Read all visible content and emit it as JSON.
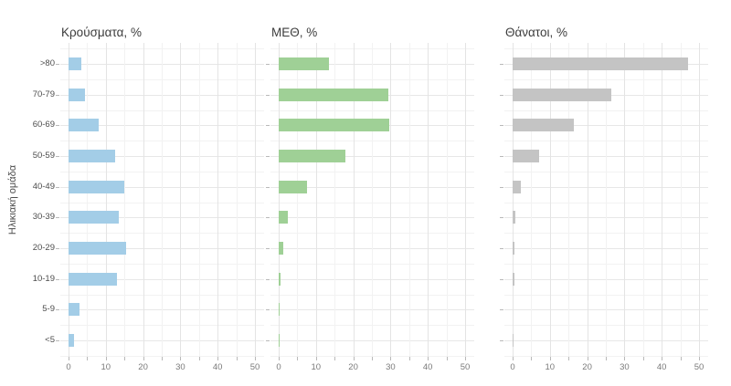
{
  "chart_data": {
    "type": "bar",
    "orientation": "horizontal",
    "title": "",
    "ylabel": "Ηλικιακή ομάδα",
    "xlabel": "",
    "categories": [
      ">80",
      "70-79",
      "60-69",
      "50-59",
      "40-49",
      "30-39",
      "20-29",
      "10-19",
      "5-9",
      "<5"
    ],
    "x_ticks": [
      0,
      10,
      20,
      30,
      40,
      50
    ],
    "x_minor_step": 5,
    "xlim": [
      0,
      50
    ],
    "grid": true,
    "legend": false,
    "series": [
      {
        "name": "Κρούσματα, %",
        "color": "#a3cde7",
        "values": [
          3.5,
          4.5,
          8,
          12.5,
          15,
          13.5,
          15.5,
          13,
          3,
          1.5
        ]
      },
      {
        "name": "ΜΕΘ, %",
        "color": "#9fd096",
        "values": [
          13.5,
          29.3,
          29.6,
          18,
          7.5,
          2.5,
          1.2,
          0.5,
          0.3,
          0.3
        ]
      },
      {
        "name": "Θάνατοι, %",
        "color": "#c4c4c4",
        "values": [
          47,
          26.5,
          16.5,
          7,
          2.2,
          0.7,
          0.6,
          0.4,
          0,
          0.3
        ]
      }
    ]
  },
  "panels": [
    {
      "title": "Κρούσματα, %"
    },
    {
      "title": "ΜΕΘ, %"
    },
    {
      "title": "Θάνατοι, %"
    }
  ],
  "colors": {
    "cases_bar": "#a3cde7",
    "icu_bar": "#9fd096",
    "deaths_bar": "#c4c4c4",
    "grid_major": "#e4e4e4",
    "grid_minor": "#f2f2f2",
    "tick": "#b9b9b9",
    "title_text": "#3c3c3c",
    "axis_text": "#7a7a7a",
    "category_text": "#4d4d4d"
  }
}
